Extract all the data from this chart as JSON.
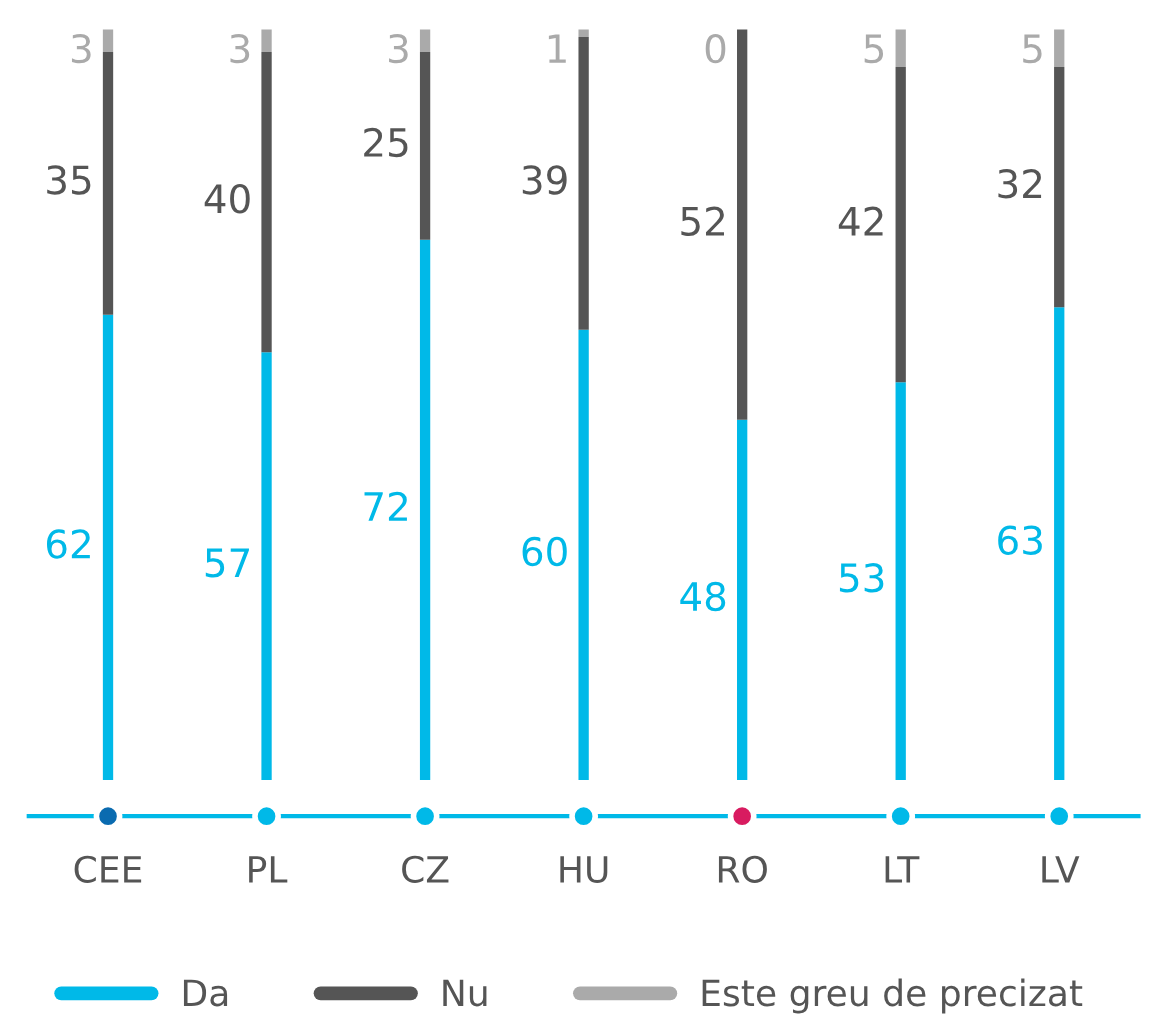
{
  "chart_data": {
    "type": "bar",
    "stacked": true,
    "data_labels": true,
    "legend": "bottom",
    "grid": false,
    "categories": [
      "CEE",
      "PL",
      "CZ",
      "HU",
      "RO",
      "LT",
      "LV"
    ],
    "series": [
      {
        "name": "Da",
        "color": "#00b9e8",
        "values": [
          62,
          57,
          72,
          60,
          48,
          53,
          63
        ]
      },
      {
        "name": "Nu",
        "color": "#555555",
        "values": [
          35,
          40,
          25,
          39,
          52,
          42,
          32
        ]
      },
      {
        "name": "Este greu de precizat",
        "color": "#aaaaaa",
        "values": [
          3,
          3,
          3,
          1,
          0,
          5,
          5
        ]
      }
    ]
  }
}
